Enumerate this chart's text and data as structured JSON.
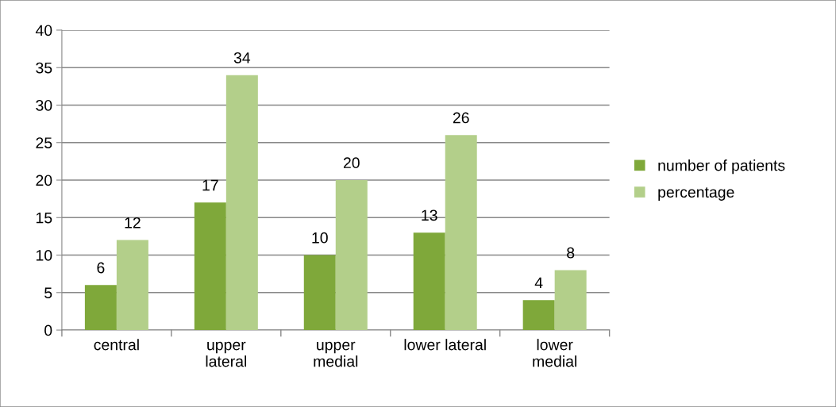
{
  "chart_data": {
    "type": "bar",
    "categories": [
      "central",
      "upper\nlateral",
      "upper\nmedial",
      "lower lateral",
      "lower\nmedial"
    ],
    "series": [
      {
        "name": "number of patients",
        "color": "#7fa83a",
        "values": [
          6,
          17,
          10,
          13,
          4
        ]
      },
      {
        "name": "percentage",
        "color": "#b3cf8a",
        "values": [
          12,
          34,
          20,
          26,
          8
        ]
      }
    ],
    "ylim": [
      0,
      40
    ],
    "yticks": [
      0,
      5,
      10,
      15,
      20,
      25,
      30,
      35,
      40
    ],
    "grid": "y",
    "legend": "right",
    "data_labels": true
  }
}
